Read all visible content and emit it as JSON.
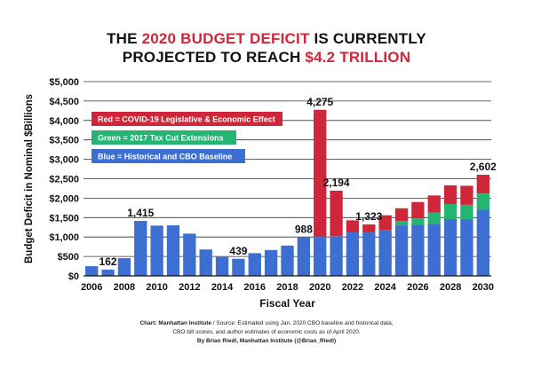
{
  "title": {
    "line1_pre": "THE ",
    "line1_highlight": "2020 BUDGET DEFICIT",
    "line1_post": " IS CURRENTLY",
    "line2_pre": "PROJECTED TO REACH ",
    "line2_highlight": "$4.2 TRILLION"
  },
  "colors": {
    "historical": "#3c6fd1",
    "tax_cut": "#25b573",
    "covid": "#d0263a",
    "grid": "#333333",
    "axis": "#111111"
  },
  "legend": [
    {
      "label": "Red = COVID-19 Legislative & Economic Effect",
      "color": "#d0263a"
    },
    {
      "label": "Green = 2017 Tax Cut Extensions",
      "color": "#25b573"
    },
    {
      "label": "Blue = Historical and CBO Baseline",
      "color": "#3c6fd1"
    }
  ],
  "chart_data": {
    "type": "bar",
    "stacked": true,
    "xlabel": "Fiscal Year",
    "ylabel": "Budget Deficit in Nominal $Billions",
    "ylim": [
      0,
      5000
    ],
    "yticks": [
      0,
      500,
      1000,
      1500,
      2000,
      2500,
      3000,
      3500,
      4000,
      4500,
      5000
    ],
    "ytick_labels": [
      "$0",
      "$500",
      "$1,000",
      "$1,500",
      "$2,000",
      "$2,500",
      "$3,000",
      "$3,500",
      "$4,000",
      "$4,500",
      "$5,000"
    ],
    "xtick_labels": [
      "2006",
      "2008",
      "2010",
      "2012",
      "2014",
      "2016",
      "2018",
      "2020",
      "2022",
      "2024",
      "2026",
      "2028",
      "2030"
    ],
    "grid": true,
    "legend_position": "top-left",
    "categories": [
      "2006",
      "2007",
      "2008",
      "2009",
      "2010",
      "2011",
      "2012",
      "2013",
      "2014",
      "2015",
      "2016",
      "2017",
      "2018",
      "2019",
      "2020",
      "2021",
      "2022",
      "2023",
      "2024",
      "2025",
      "2026",
      "2027",
      "2028",
      "2029",
      "2030"
    ],
    "series": [
      {
        "key": "historical",
        "values": [
          248,
          162,
          455,
          1415,
          1294,
          1300,
          1087,
          680,
          485,
          439,
          585,
          665,
          779,
          984,
          1015,
          1020,
          1120,
          1130,
          1180,
          1300,
          1320,
          1340,
          1460,
          1450,
          1700
        ]
      },
      {
        "key": "tax_cut",
        "values": [
          0,
          0,
          0,
          0,
          0,
          0,
          0,
          0,
          0,
          0,
          0,
          0,
          0,
          0,
          0,
          0,
          0,
          0,
          0,
          110,
          160,
          290,
          390,
          380,
          420
        ]
      },
      {
        "key": "covid",
        "values": [
          0,
          0,
          0,
          0,
          0,
          0,
          0,
          0,
          0,
          0,
          0,
          0,
          0,
          4,
          3260,
          1174,
          310,
          193,
          380,
          330,
          420,
          440,
          480,
          490,
          482
        ]
      }
    ],
    "annotations": [
      {
        "category": "2007",
        "label": "162"
      },
      {
        "category": "2009",
        "label": "1,415"
      },
      {
        "category": "2015",
        "label": "439"
      },
      {
        "category": "2019",
        "label": "988"
      },
      {
        "category": "2020",
        "label": "4,275"
      },
      {
        "category": "2021",
        "label": "2,194"
      },
      {
        "category": "2023",
        "label": "1,323"
      },
      {
        "category": "2030",
        "label": "2,602"
      }
    ]
  },
  "source": {
    "line1_bold": "Chart: Manhattan Institute",
    "line1_rest": "  /  Source: Estimated using Jan. 2020 CBO baseline and historical data,",
    "line2": "CBO bill scores, and author estimates of economic costs as of April 2020.",
    "line3": "By Brian Riedl, Manhattan Institute (@Brian_Riedl)"
  }
}
